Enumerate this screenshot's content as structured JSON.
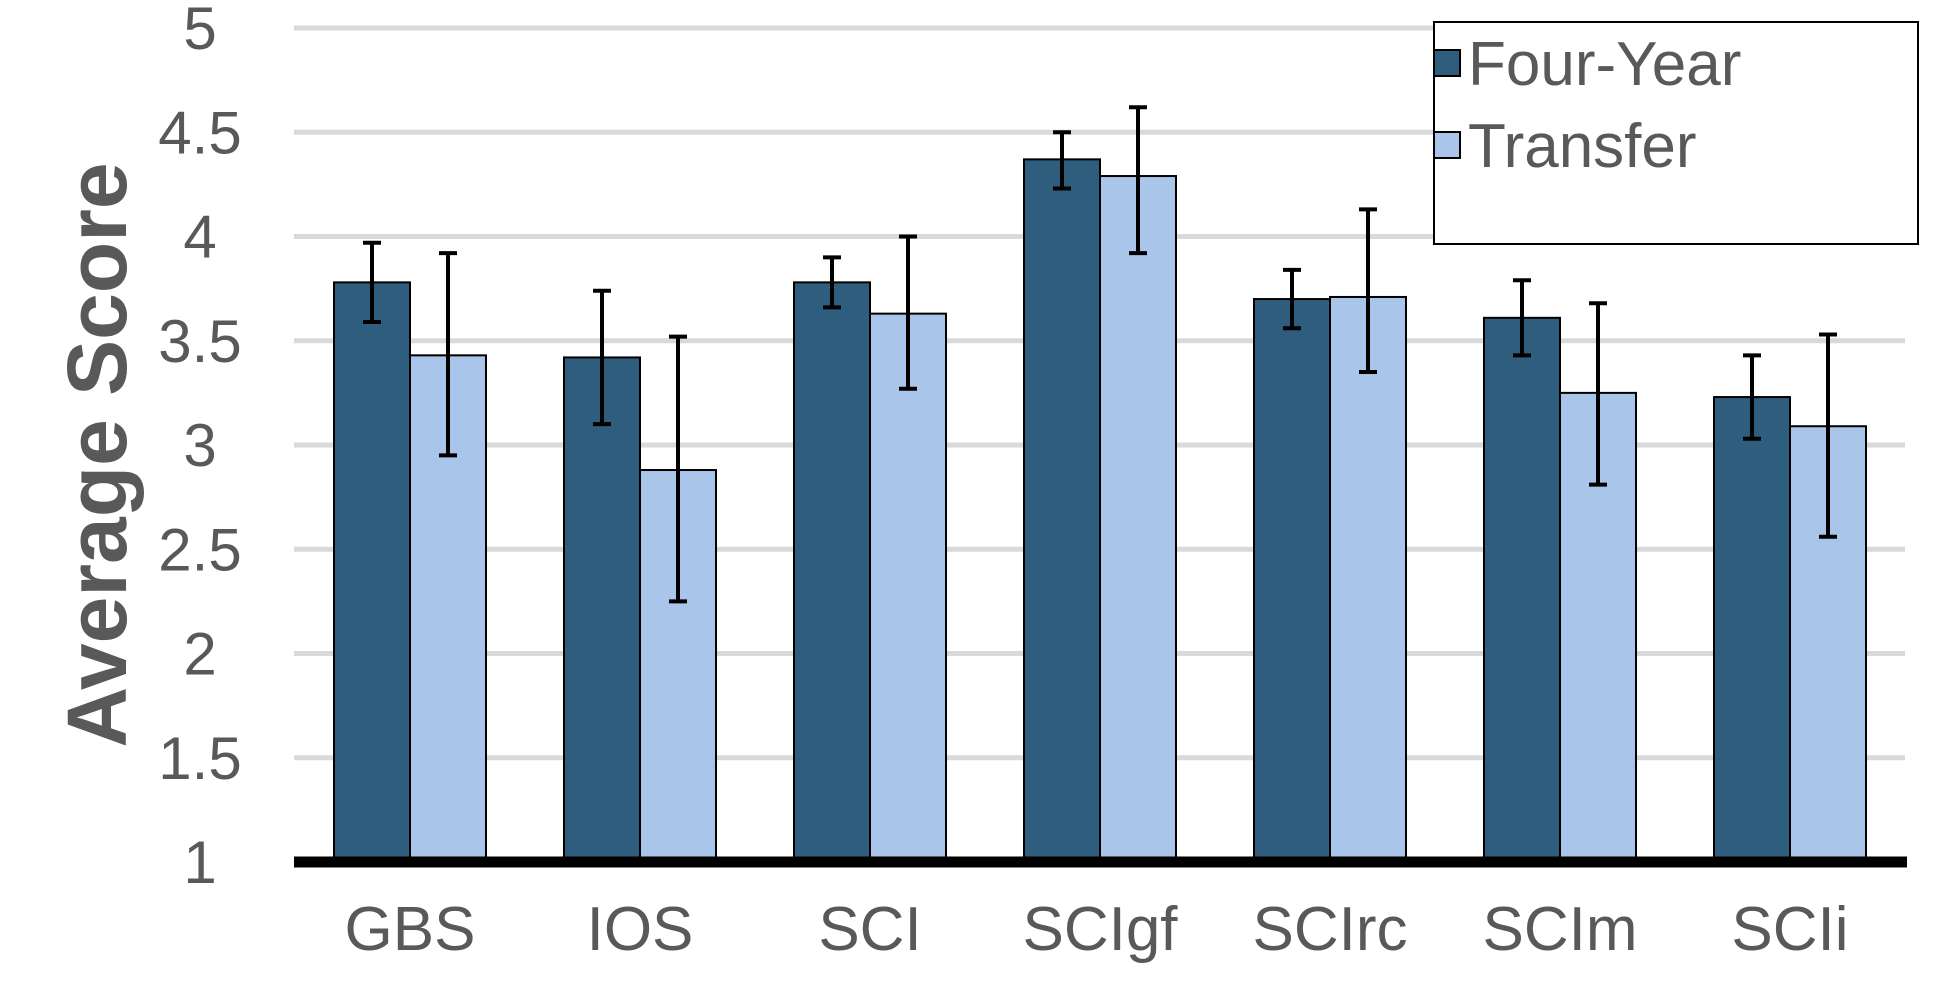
{
  "chart_data": {
    "type": "bar",
    "title": "",
    "xlabel": "",
    "ylabel": "Average Score",
    "ylim": [
      1,
      5
    ],
    "yticks": [
      1,
      1.5,
      2,
      2.5,
      3,
      3.5,
      4,
      4.5,
      5
    ],
    "grid": true,
    "legend_position": "top-right",
    "categories": [
      "GBS",
      "IOS",
      "SCI",
      "SCIgf",
      "SCIrc",
      "SCIm",
      "SCIi"
    ],
    "series": [
      {
        "name": "Four-Year",
        "color": "#2f5d7e",
        "values": [
          3.78,
          3.42,
          3.78,
          4.37,
          3.7,
          3.61,
          3.23
        ],
        "error_low": [
          3.59,
          3.1,
          3.66,
          4.23,
          3.56,
          3.43,
          3.03
        ],
        "error_high": [
          3.97,
          3.74,
          3.9,
          4.5,
          3.84,
          3.79,
          3.43
        ]
      },
      {
        "name": "Transfer",
        "color": "#a9c5ea",
        "values": [
          3.43,
          2.88,
          3.63,
          4.29,
          3.71,
          3.25,
          3.09
        ],
        "error_low": [
          2.95,
          2.25,
          3.27,
          3.92,
          3.35,
          2.81,
          2.56
        ],
        "error_high": [
          3.92,
          3.52,
          4.0,
          4.62,
          4.13,
          3.68,
          3.53
        ]
      }
    ]
  }
}
